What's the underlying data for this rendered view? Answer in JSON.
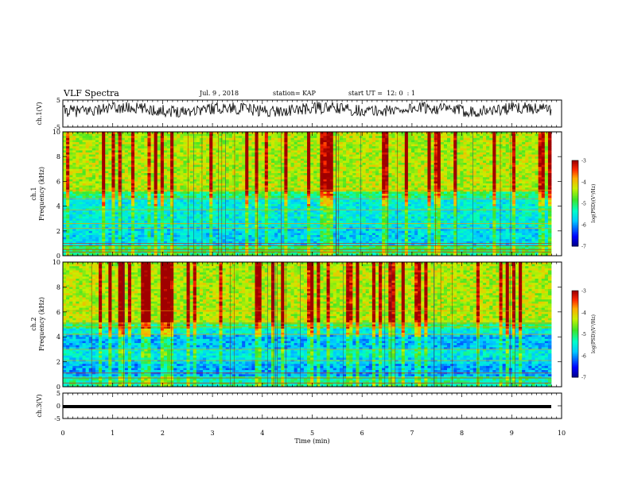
{
  "header": {
    "title": "VLF Spectra",
    "date": "Jul. 9 , 2018",
    "station": "station= KAP",
    "start": "start UT =  12: 0  : 1"
  },
  "chart_data": [
    {
      "type": "line",
      "ylabel": "ch.1(V)",
      "ylim": [
        -5,
        5
      ],
      "yticks": [
        "5",
        "-5"
      ],
      "xlim": [
        0,
        10
      ],
      "series": [
        {
          "values_description_only": "",
          "baseline": 1.5,
          "amplitude": 2.2
        }
      ]
    },
    {
      "type": "heatmap",
      "ylabel_top": "ch.1",
      "ylabel": "Frequency (kHz)",
      "ylim": [
        0,
        10
      ],
      "yticks": [
        "0",
        "2",
        "4",
        "6",
        "8",
        "10"
      ],
      "xlim": [
        0,
        10
      ],
      "colorbar": {
        "label": "log(PSD)(V²/Hz)",
        "ticks": [
          "-3",
          "-4",
          "-5",
          "-6",
          "-7"
        ],
        "range": [
          -7,
          -3
        ]
      }
    },
    {
      "type": "heatmap",
      "ylabel_top": "ch.2",
      "ylabel": "Frequency (kHz)",
      "ylim": [
        0,
        10
      ],
      "yticks": [
        "0",
        "2",
        "4",
        "6",
        "8",
        "10"
      ],
      "xlim": [
        0,
        10
      ],
      "colorbar": {
        "label": "log(PSD)(V²/Hz)",
        "ticks": [
          "-3",
          "-4",
          "-5",
          "-6",
          "-7"
        ],
        "range": [
          -7,
          -3
        ]
      }
    },
    {
      "type": "line",
      "ylabel": "ch.3(V)",
      "ylim": [
        -5,
        5
      ],
      "yticks": [
        "5",
        "0",
        "-5"
      ],
      "xlim": [
        0,
        10
      ],
      "xlabel": "Time (min)",
      "xticks": [
        "0",
        "1",
        "2",
        "3",
        "4",
        "5",
        "6",
        "7",
        "8",
        "9",
        "10"
      ],
      "series": [
        {
          "constant": 0
        }
      ]
    }
  ]
}
